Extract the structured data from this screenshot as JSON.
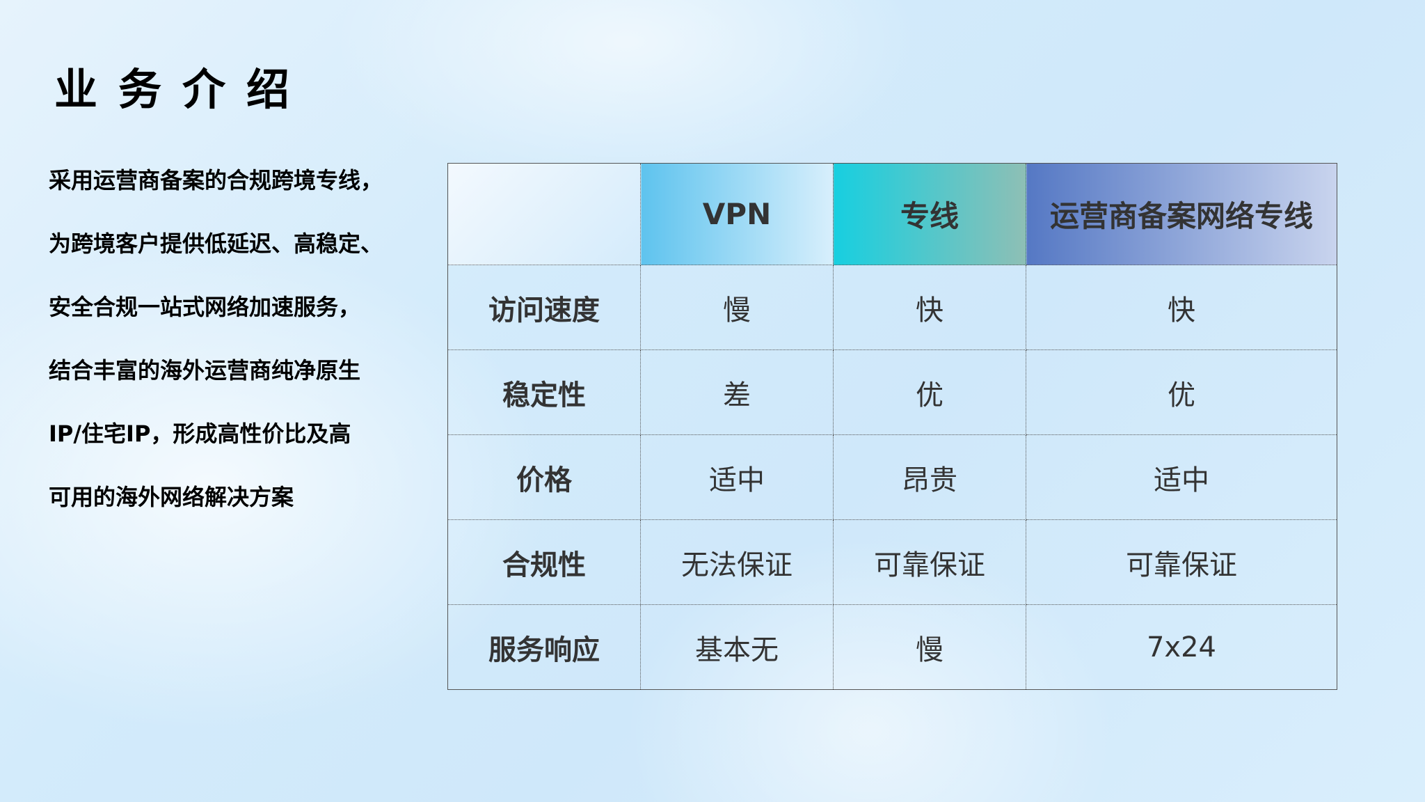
{
  "title": "业务介绍",
  "intro_lines": [
    "采用运营商备案的合规跨境专线，",
    "为跨境客户提供低延迟、高稳定、",
    "安全合规一站式网络加速服务，",
    "结合丰富的海外运营商纯净原生",
    "IP/住宅IP，形成高性价比及高",
    "可用的海外网络解决方案"
  ],
  "table": {
    "headers": [
      "",
      "VPN",
      "专线",
      "运营商备案网络专线"
    ],
    "header_colors": [
      "#5ec3ee",
      "#17cfe0",
      "#5578c4"
    ],
    "rows": [
      [
        "访问速度",
        "慢",
        "快",
        "快"
      ],
      [
        "稳定性",
        "差",
        "优",
        "优"
      ],
      [
        "价格",
        "适中",
        "昂贵",
        "适中"
      ],
      [
        "合规性",
        "无法保证",
        "可靠保证",
        "可靠保证"
      ],
      [
        "服务响应",
        "基本无",
        "慢",
        "7x24"
      ]
    ]
  }
}
